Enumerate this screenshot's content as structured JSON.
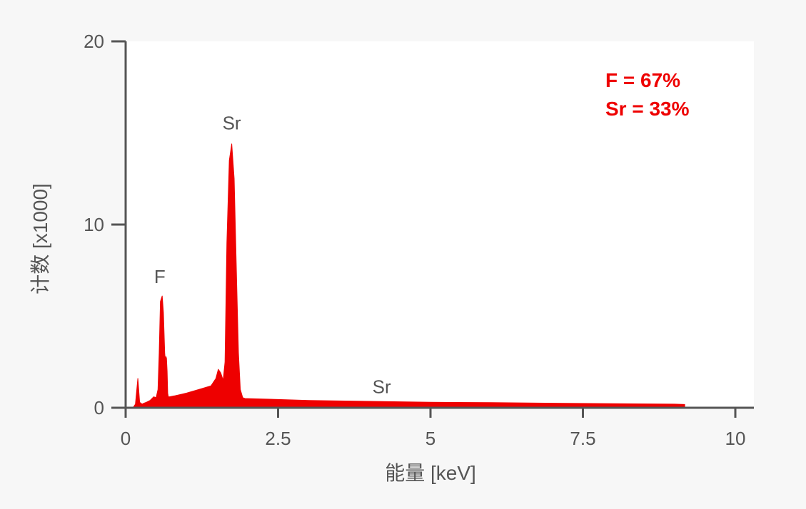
{
  "chart_data": {
    "type": "area",
    "title": "",
    "xlabel": "能量 [keV]",
    "ylabel": "计数 [x1000]",
    "xlim": [
      0,
      10
    ],
    "ylim": [
      0,
      20
    ],
    "x_ticks": [
      "0",
      "2.5",
      "5",
      "7.5",
      "10"
    ],
    "y_ticks": [
      "0",
      "10",
      "20"
    ],
    "grid": false,
    "legend": "none",
    "series": [
      {
        "color": "#ee0000",
        "x": [
          0.0,
          0.12,
          0.16,
          0.2,
          0.23,
          0.27,
          0.3,
          0.34,
          0.4,
          0.46,
          0.5,
          0.53,
          0.55,
          0.57,
          0.6,
          0.62,
          0.64,
          0.65,
          0.66,
          0.67,
          0.68,
          0.69,
          0.7,
          0.72,
          0.8,
          1.0,
          1.2,
          1.4,
          1.48,
          1.52,
          1.56,
          1.6,
          1.63,
          1.66,
          1.7,
          1.74,
          1.78,
          1.82,
          1.85,
          1.88,
          1.92,
          1.96,
          2.0,
          2.5,
          3.0,
          4.0,
          5.0,
          6.0,
          7.0,
          8.0,
          9.0,
          9.17
        ],
        "y": [
          0.0,
          0.0,
          0.2,
          1.6,
          0.3,
          0.2,
          0.25,
          0.3,
          0.4,
          0.6,
          0.55,
          1.0,
          3.0,
          5.8,
          6.1,
          5.2,
          3.0,
          2.6,
          2.8,
          2.7,
          2.0,
          0.8,
          0.6,
          0.6,
          0.65,
          0.8,
          1.0,
          1.2,
          1.6,
          2.1,
          1.9,
          1.5,
          2.5,
          9.0,
          13.5,
          14.4,
          12.5,
          7.0,
          3.0,
          1.0,
          0.55,
          0.5,
          0.5,
          0.45,
          0.4,
          0.35,
          0.3,
          0.28,
          0.25,
          0.22,
          0.2,
          0.18
        ]
      }
    ],
    "annotations": [
      {
        "text": "F",
        "x": 0.56,
        "y": 6.8
      },
      {
        "text": "Sr",
        "x": 1.74,
        "y": 15.2
      },
      {
        "text": "Sr",
        "x": 4.2,
        "y": 0.8
      }
    ],
    "composition": [
      "F = 67%",
      "Sr = 33%"
    ]
  }
}
